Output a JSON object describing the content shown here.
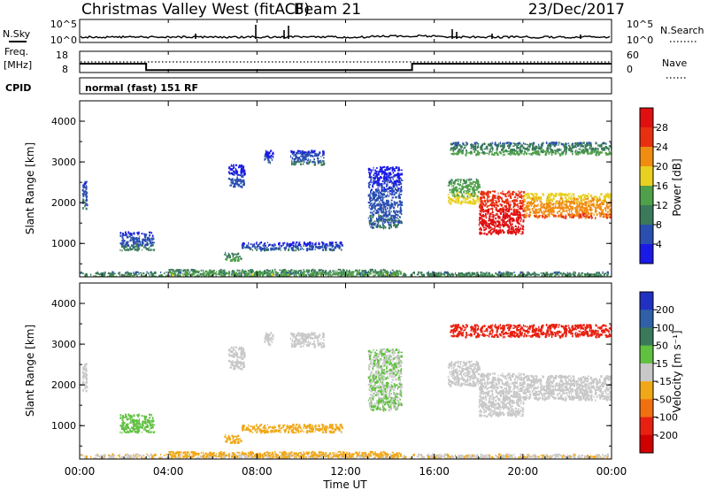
{
  "header": {
    "station": "Christmas Valley West (fitACF)",
    "beam": "Beam 21",
    "date": "23/Dec/2017"
  },
  "noise_panel": {
    "left_label": "N.Sky",
    "right_label": "N.Search",
    "left_ticks": [
      "10^5",
      "10^0"
    ],
    "right_ticks": [
      "10^5",
      "10^0"
    ]
  },
  "freq_panel": {
    "left_label_1": "Freq.",
    "left_label_2": "[MHz]",
    "right_label": "Nave",
    "left_ticks": [
      "18",
      "8"
    ],
    "right_ticks": [
      "60",
      "0"
    ]
  },
  "cpid": {
    "label": "CPID",
    "text": "normal (fast) 151 RF"
  },
  "axes": {
    "x_ticks": [
      "00:00",
      "04:00",
      "08:00",
      "12:00",
      "16:00",
      "20:00",
      "00:00"
    ],
    "x_label": "Time UT",
    "y_ticks": [
      "1000",
      "2000",
      "3000",
      "4000"
    ],
    "y_label": "Slant Range [km]"
  },
  "power_colorbar": {
    "label": "Power [dB]",
    "ticks": [
      "4",
      "8",
      "12",
      "16",
      "20",
      "24",
      "28"
    ],
    "colors": [
      "#1a1ae6",
      "#2a4fb0",
      "#3a7a5a",
      "#4fa04a",
      "#e8d020",
      "#f08c10",
      "#e83010",
      "#e01010"
    ]
  },
  "velocity_colorbar": {
    "label": "Velocity [m s⁻¹]",
    "ticks": [
      "200",
      "100",
      "50",
      "15",
      "-15",
      "-50",
      "-100",
      "-200"
    ],
    "colors": [
      "#2030c0",
      "#3060a8",
      "#3a7a5a",
      "#60c040",
      "#c8c8c8",
      "#f0a818",
      "#f07010",
      "#e82010",
      "#d00000"
    ]
  },
  "chart_data": {
    "type": "heatmap",
    "title": "Christmas Valley West (fitACF) Beam 21 23/Dec/2017",
    "xlabel": "Time UT",
    "ylabel": "Slant Range [km]",
    "xlim": [
      0,
      24
    ],
    "ylim": [
      180,
      4500
    ],
    "x_ticks_hours": [
      0,
      4,
      8,
      12,
      16,
      20,
      24
    ],
    "y_ticks_km": [
      1000,
      2000,
      3000,
      4000
    ],
    "frequency_mhz_segments": [
      {
        "from": 0,
        "to": 3,
        "value": 13
      },
      {
        "from": 3,
        "to": 15,
        "value": 10
      },
      {
        "from": 15,
        "to": 24,
        "value": 13
      }
    ],
    "nave": 20,
    "power_scale_db": [
      0,
      30
    ],
    "velocity_scale_ms": [
      -250,
      250
    ],
    "echo_regions": [
      {
        "t": [
          0.0,
          24.0
        ],
        "r": [
          200,
          320
        ],
        "power_db": 10,
        "velocity_ms": -10
      },
      {
        "t": [
          4.0,
          14.5
        ],
        "r": [
          250,
          380
        ],
        "power_db": 12,
        "velocity_ms": -40
      },
      {
        "t": [
          1.8,
          3.3
        ],
        "r": [
          850,
          1300
        ],
        "power_db": 6,
        "velocity_ms": 40
      },
      {
        "t": [
          7.3,
          11.8
        ],
        "r": [
          850,
          1050
        ],
        "power_db": 5,
        "velocity_ms": -40
      },
      {
        "t": [
          6.5,
          7.3
        ],
        "r": [
          600,
          800
        ],
        "power_db": 10,
        "velocity_ms": -35
      },
      {
        "t": [
          9.5,
          11.0
        ],
        "r": [
          2950,
          3300
        ],
        "power_db": 6,
        "velocity_ms": 0
      },
      {
        "t": [
          6.7,
          7.4
        ],
        "r": [
          2400,
          2950
        ],
        "power_db": 4,
        "velocity_ms": 0
      },
      {
        "t": [
          8.3,
          8.7
        ],
        "r": [
          3000,
          3300
        ],
        "power_db": 4,
        "velocity_ms": 0
      },
      {
        "t": [
          13.0,
          14.5
        ],
        "r": [
          1400,
          2900
        ],
        "power_db": 5,
        "velocity_ms": 15
      },
      {
        "t": [
          16.6,
          18.0
        ],
        "r": [
          2000,
          2600
        ],
        "power_db": 14,
        "velocity_ms": 0
      },
      {
        "t": [
          18.0,
          20.0
        ],
        "r": [
          1250,
          2300
        ],
        "power_db": 27,
        "velocity_ms": 0
      },
      {
        "t": [
          20.0,
          24.0
        ],
        "r": [
          1650,
          2250
        ],
        "power_db": 20,
        "velocity_ms": 0
      },
      {
        "t": [
          16.7,
          24.0
        ],
        "r": [
          3200,
          3500
        ],
        "power_db": 10,
        "velocity_ms": -150
      },
      {
        "t": [
          0.1,
          0.3
        ],
        "r": [
          1850,
          2600
        ],
        "power_db": 6,
        "velocity_ms": 0
      }
    ]
  }
}
